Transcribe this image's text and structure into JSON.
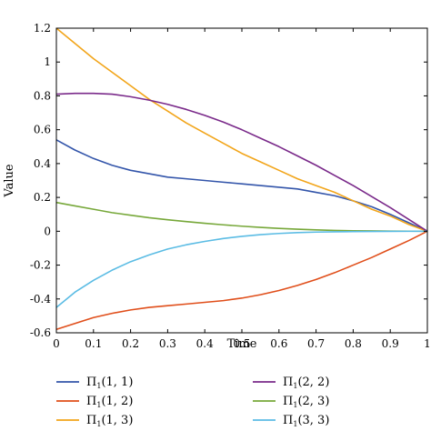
{
  "chart_data": {
    "type": "line",
    "xlabel": "Time",
    "ylabel": "Value",
    "xlim": [
      0,
      1
    ],
    "ylim": [
      -0.6,
      1.2
    ],
    "xticks": [
      0,
      0.1,
      0.2,
      0.3,
      0.4,
      0.5,
      0.6,
      0.7,
      0.8,
      0.9,
      1
    ],
    "xtick_labels": [
      "0",
      "0.1",
      "0.2",
      "0.3",
      "0.4",
      "0.5",
      "0.6",
      "0.7",
      "0.8",
      "0.9",
      "1"
    ],
    "yticks": [
      -0.6,
      -0.4,
      -0.2,
      0,
      0.2,
      0.4,
      0.6,
      0.8,
      1.0,
      1.2
    ],
    "ytick_labels": [
      "-0.6",
      "-0.4",
      "-0.2",
      "0",
      "0.2",
      "0.4",
      "0.6",
      "0.8",
      "1",
      "1.2"
    ],
    "grid": false,
    "legend_position": "bottom",
    "x": [
      0,
      0.05,
      0.1,
      0.15,
      0.2,
      0.25,
      0.3,
      0.35,
      0.4,
      0.45,
      0.5,
      0.55,
      0.6,
      0.65,
      0.7,
      0.75,
      0.8,
      0.85,
      0.9,
      0.95,
      1
    ],
    "series": [
      {
        "name_main": "Π",
        "name_sub": "1",
        "name_args": "(1, 1)",
        "color": "#3355aa",
        "values": [
          0.54,
          0.48,
          0.43,
          0.39,
          0.36,
          0.34,
          0.32,
          0.31,
          0.3,
          0.29,
          0.28,
          0.27,
          0.26,
          0.25,
          0.23,
          0.21,
          0.18,
          0.145,
          0.1,
          0.05,
          0
        ]
      },
      {
        "name_main": "Π",
        "name_sub": "1",
        "name_args": "(1, 2)",
        "color": "#e04e1a",
        "values": [
          -0.58,
          -0.545,
          -0.51,
          -0.485,
          -0.465,
          -0.45,
          -0.44,
          -0.43,
          -0.42,
          -0.41,
          -0.395,
          -0.375,
          -0.35,
          -0.32,
          -0.285,
          -0.245,
          -0.2,
          -0.155,
          -0.105,
          -0.055,
          0
        ]
      },
      {
        "name_main": "Π",
        "name_sub": "1",
        "name_args": "(1, 3)",
        "color": "#f2a51a",
        "values": [
          1.2,
          1.11,
          1.02,
          0.94,
          0.86,
          0.78,
          0.71,
          0.64,
          0.58,
          0.52,
          0.46,
          0.41,
          0.36,
          0.31,
          0.27,
          0.23,
          0.18,
          0.13,
          0.09,
          0.04,
          0
        ]
      },
      {
        "name_main": "Π",
        "name_sub": "1",
        "name_args": "(2, 2)",
        "color": "#7a2a8a",
        "values": [
          0.81,
          0.815,
          0.815,
          0.81,
          0.795,
          0.775,
          0.75,
          0.72,
          0.685,
          0.645,
          0.6,
          0.55,
          0.5,
          0.445,
          0.39,
          0.33,
          0.27,
          0.205,
          0.14,
          0.07,
          0
        ]
      },
      {
        "name_main": "Π",
        "name_sub": "1",
        "name_args": "(2, 3)",
        "color": "#77a83a",
        "values": [
          0.17,
          0.15,
          0.13,
          0.11,
          0.095,
          0.08,
          0.068,
          0.057,
          0.047,
          0.038,
          0.03,
          0.023,
          0.017,
          0.012,
          0.008,
          0.005,
          0.003,
          0.002,
          0.001,
          0.0005,
          0
        ]
      },
      {
        "name_main": "Π",
        "name_sub": "1",
        "name_args": "(3, 3)",
        "color": "#5bbce4",
        "values": [
          -0.45,
          -0.36,
          -0.29,
          -0.23,
          -0.18,
          -0.14,
          -0.105,
          -0.08,
          -0.06,
          -0.043,
          -0.03,
          -0.02,
          -0.013,
          -0.008,
          -0.005,
          -0.003,
          -0.002,
          -0.001,
          -0.0005,
          -0.0002,
          0
        ]
      }
    ]
  }
}
